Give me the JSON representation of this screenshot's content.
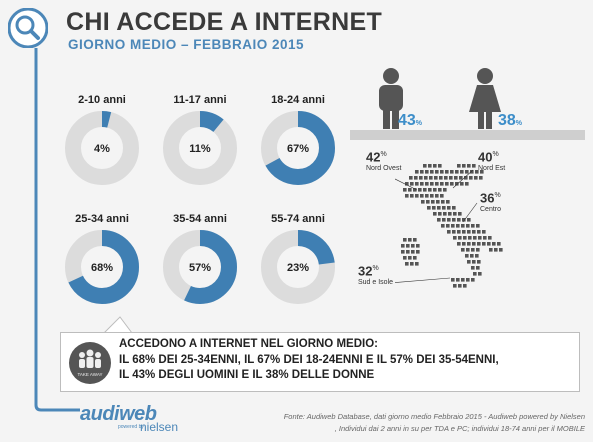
{
  "header": {
    "title": "CHI ACCEDE A INTERNET",
    "subtitle": "GIORNO MEDIO – FEBBRAIO 2015"
  },
  "chart_data": [
    {
      "type": "pie",
      "variant": "donut",
      "categories": [
        "2-10 anni",
        "11-17 anni",
        "18-24 anni",
        "25-34 anni",
        "35-54 anni",
        "55-74 anni"
      ],
      "values": [
        4,
        11,
        67,
        68,
        57,
        23
      ],
      "labels": [
        "4%",
        "11%",
        "67%",
        "68%",
        "57%",
        "23%"
      ],
      "colors": {
        "filled": "#3f7fb3",
        "empty": "#dcdcdc"
      }
    },
    {
      "type": "bar",
      "variant": "pictogram",
      "categories": [
        "uomini",
        "donne"
      ],
      "values": [
        43,
        38
      ],
      "labels": [
        "43",
        "38"
      ],
      "unit": "%"
    },
    {
      "type": "table",
      "variant": "map",
      "categories": [
        "Nord Ovest",
        "Nord Est",
        "Centro",
        "Sud e Isole"
      ],
      "values": [
        42,
        40,
        36,
        32
      ],
      "labels": [
        "42",
        "40",
        "36",
        "32"
      ],
      "unit": "%"
    }
  ],
  "callout": {
    "line1": "ACCEDONO A INTERNET NEL GIORNO MEDIO:",
    "line2": "IL 68% DEI 25-34ENNI, IL 67% DEI 18-24ENNI E IL 57% DEI 35-54ENNI,",
    "line3": "IL  43% DEGLI UOMINI E IL 38% DELLE DONNE",
    "badge_text": "TAKE AWAY"
  },
  "footer": {
    "logo_audiweb": "audiweb",
    "logo_powered": "powered by",
    "logo_nielsen": "nielsen",
    "source_line1": "Fonte: Audiweb Database, dati giorno medio Febbraio 2015 - Audiweb powered by Nielsen",
    "source_line2": ", Individui dai 2 anni in su  per TDA e PC; individui 18-74 anni per il MOBILE"
  },
  "colors": {
    "accent": "#3f7fb3",
    "title": "#3a3a3a",
    "subtitle": "#4c87b8",
    "donut_empty": "#dcdcdc",
    "pictogram": "#555555",
    "map_dots": "#555555"
  }
}
